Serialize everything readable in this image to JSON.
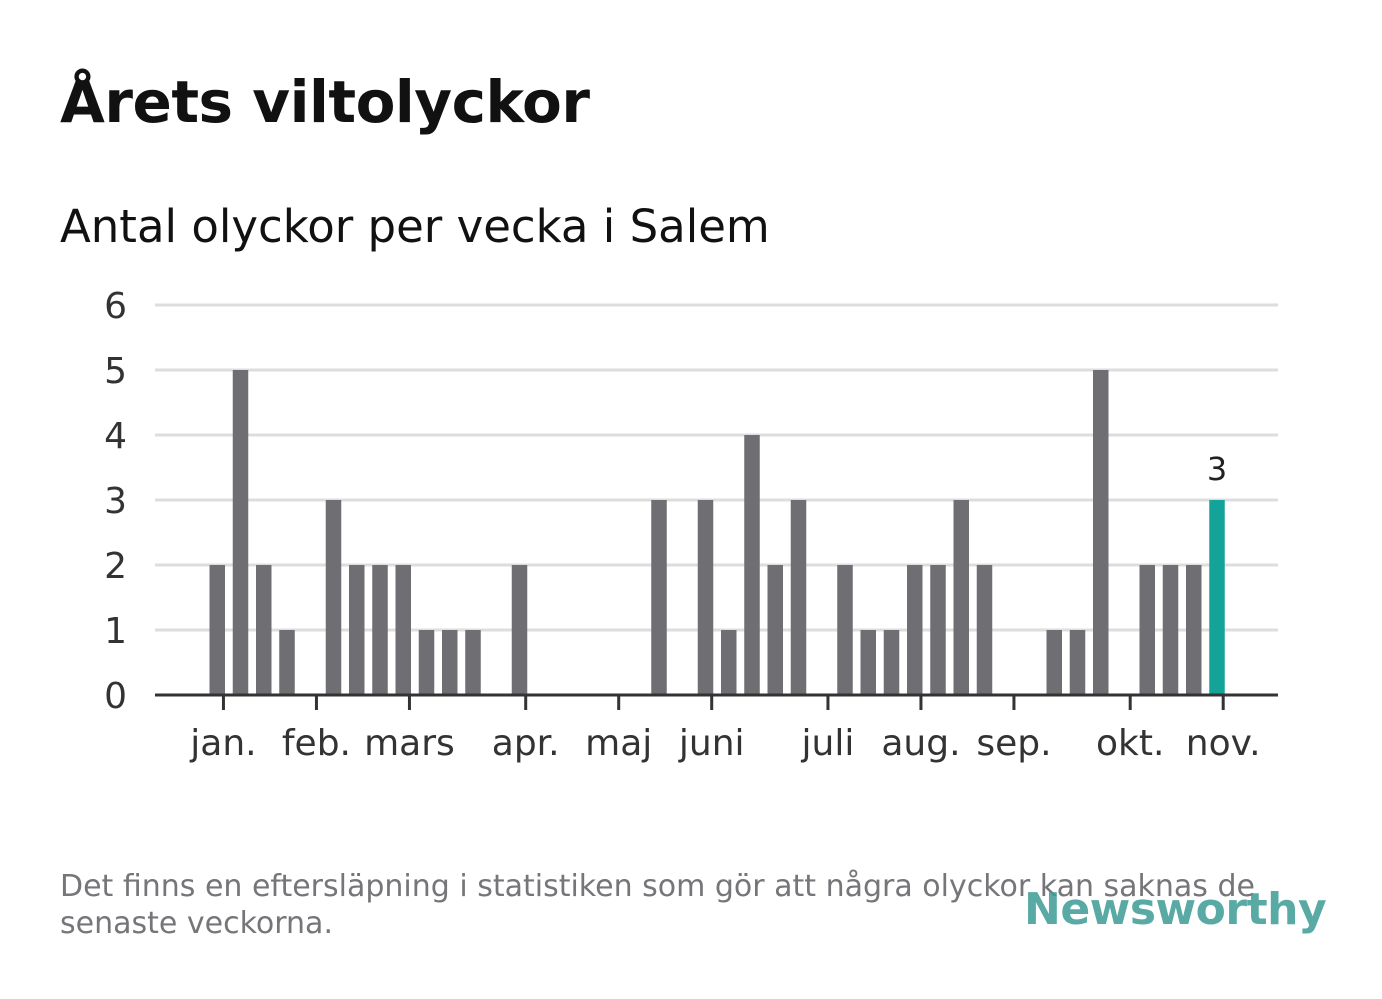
{
  "title": "Årets viltolyckor",
  "subtitle": "Antal olyckor per vecka i Salem",
  "footnote": "Det finns en eftersläpning i statistiken som gör att några olyckor kan saknas de senaste veckorna.",
  "logo": {
    "name": "Newsworthy",
    "icon": "bar-chart-icon"
  },
  "colors": {
    "bar": "#6f6f73",
    "highlight": "#13a398",
    "grid": "#dddddd",
    "axis": "#333333",
    "text": "#333333"
  },
  "chart_data": {
    "type": "bar",
    "ylim": [
      0,
      6
    ],
    "yticks": [
      0,
      1,
      2,
      3,
      4,
      5,
      6
    ],
    "num_weeks": 46,
    "values": [
      0,
      0,
      2,
      5,
      2,
      1,
      0,
      3,
      2,
      2,
      2,
      1,
      1,
      1,
      0,
      2,
      0,
      0,
      0,
      0,
      0,
      3,
      0,
      3,
      1,
      4,
      2,
      3,
      0,
      2,
      1,
      1,
      2,
      2,
      3,
      2,
      0,
      0,
      1,
      1,
      5,
      0,
      2,
      2,
      2,
      3
    ],
    "highlight_index": 45,
    "highlight_label": "3",
    "month_labels": [
      {
        "label": "jan.",
        "week": 2.6
      },
      {
        "label": "feb.",
        "week": 6.6
      },
      {
        "label": "mars",
        "week": 10.6
      },
      {
        "label": "apr.",
        "week": 15.6
      },
      {
        "label": "maj",
        "week": 19.6
      },
      {
        "label": "juni",
        "week": 23.6
      },
      {
        "label": "juli",
        "week": 28.6
      },
      {
        "label": "aug.",
        "week": 32.6
      },
      {
        "label": "sep.",
        "week": 36.6
      },
      {
        "label": "okt.",
        "week": 41.6
      },
      {
        "label": "nov.",
        "week": 45.6
      }
    ]
  }
}
